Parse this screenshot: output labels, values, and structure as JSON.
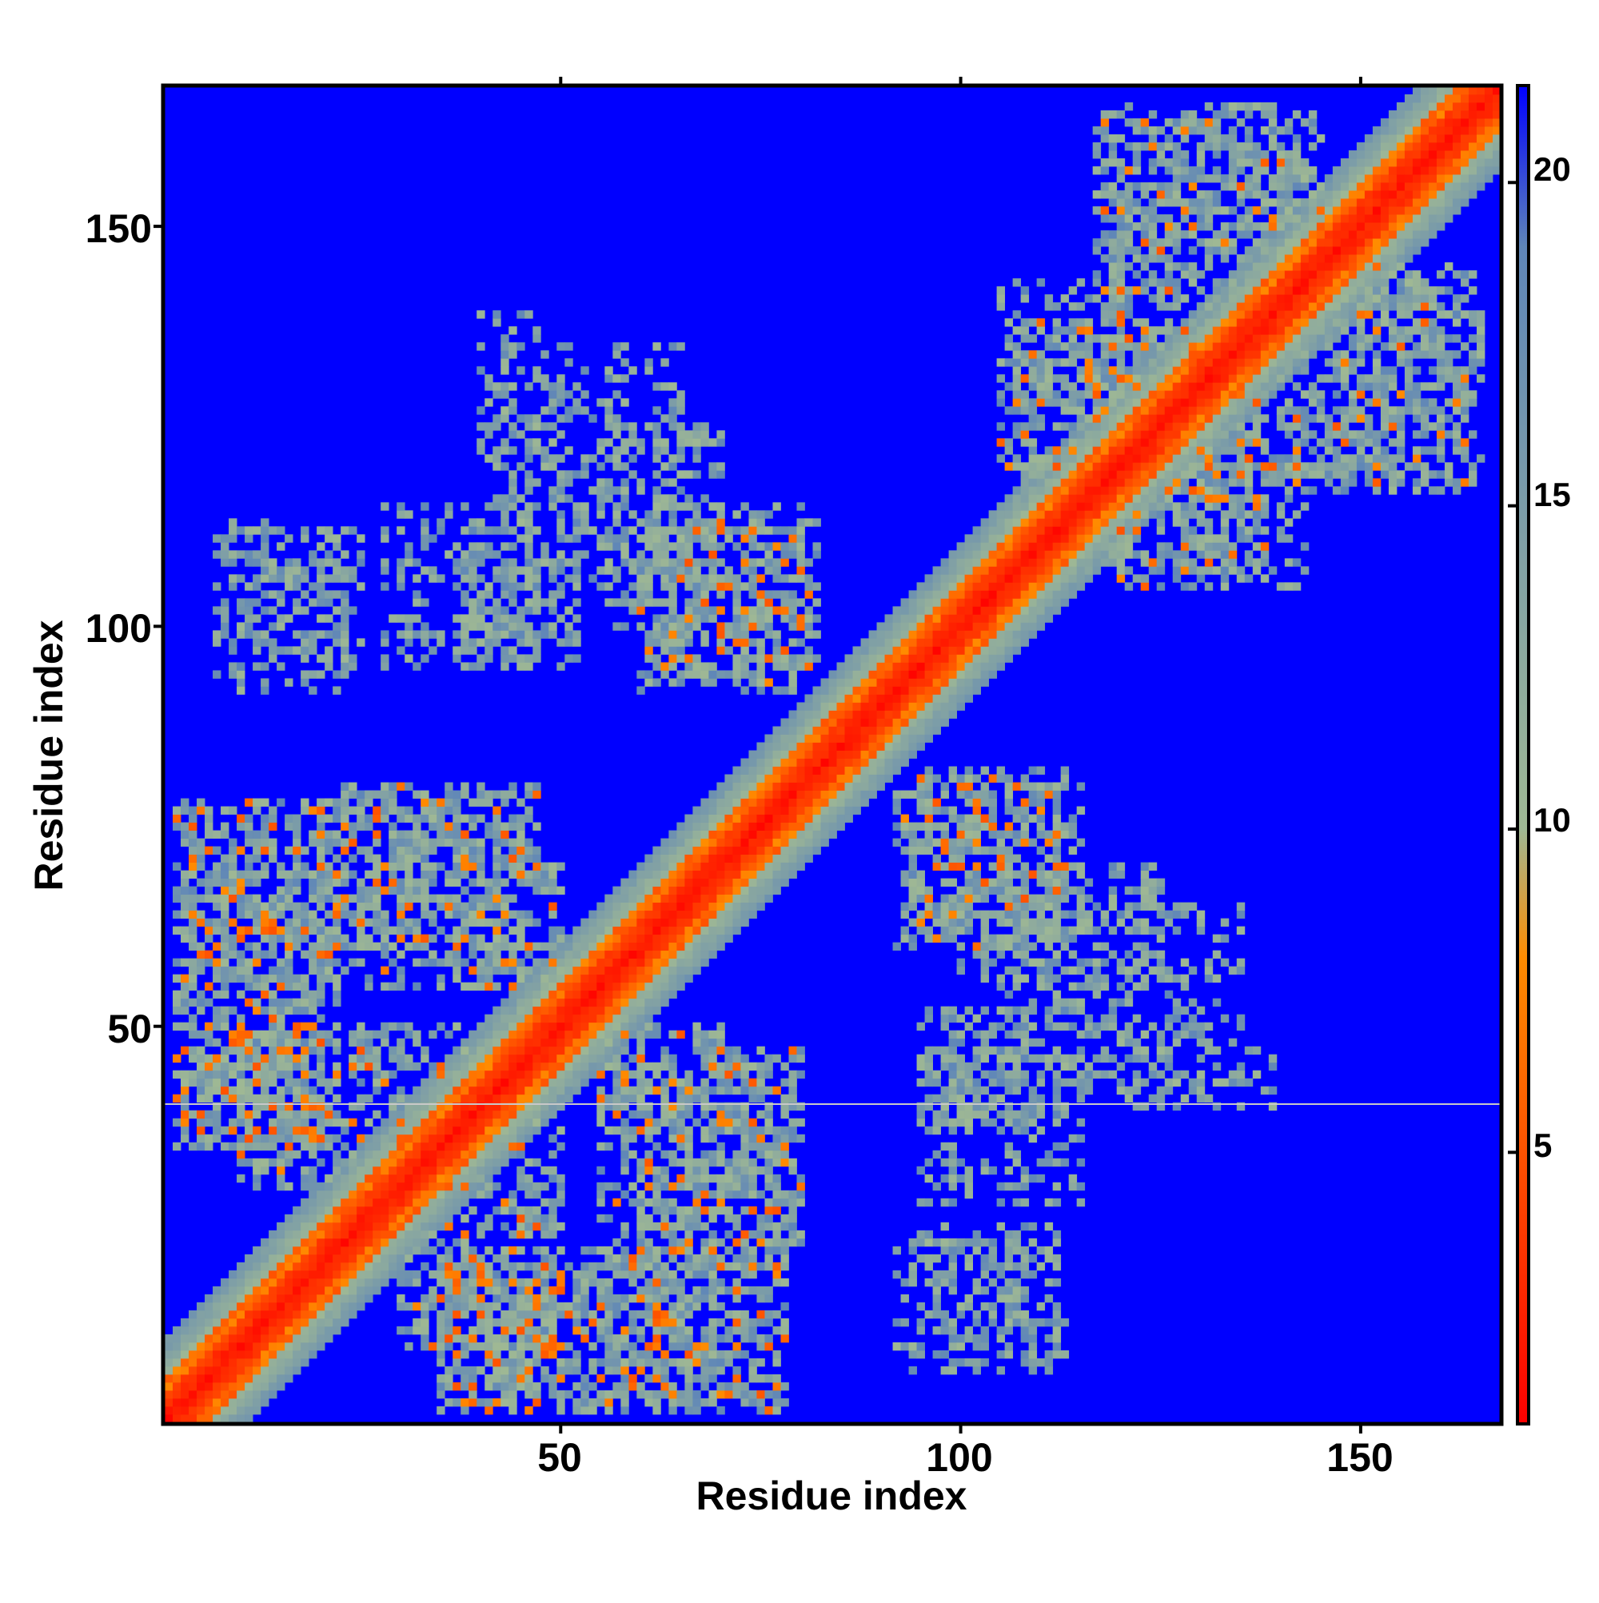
{
  "chart_data": {
    "type": "heatmap",
    "title": "",
    "xlabel": "Residue index",
    "ylabel": "Residue index",
    "n_residues": 167,
    "xlim": [
      1,
      167
    ],
    "ylim": [
      1,
      167
    ],
    "x_ticks": [
      50,
      100,
      150
    ],
    "y_ticks": [
      50,
      100,
      150
    ],
    "colorbar": {
      "range": [
        0.8,
        21.5
      ],
      "ticks": [
        5,
        10,
        15,
        20
      ],
      "colors": [
        "#ff0000",
        "#ff8c00",
        "#9fb894",
        "#5f86b8",
        "#0000ff"
      ],
      "stops": [
        0.8,
        8.0,
        10.0,
        19.0,
        21.5
      ]
    },
    "background_value": 21.5,
    "diagonal_band": {
      "core_width": 3,
      "orange_width": 5,
      "green_width": 10
    },
    "contact_regions": [
      {
        "x": [
          2,
          22
        ],
        "y": [
          35,
          78
        ],
        "density": 0.45,
        "hot": 0.05
      },
      {
        "x": [
          20,
          47
        ],
        "y": [
          60,
          80
        ],
        "density": 0.45,
        "hot": 0.04
      },
      {
        "x": [
          37,
          50
        ],
        "y": [
          55,
          70
        ],
        "density": 0.45,
        "hot": 0.05
      },
      {
        "x": [
          30,
          50
        ],
        "y": [
          10,
          40
        ],
        "density": 0.45,
        "hot": 0.05
      },
      {
        "x": [
          35,
          75
        ],
        "y": [
          3,
          20
        ],
        "density": 0.45,
        "hot": 0.06
      },
      {
        "x": [
          55,
          78
        ],
        "y": [
          20,
          45
        ],
        "density": 0.4,
        "hot": 0.03
      },
      {
        "x": [
          7,
          25
        ],
        "y": [
          92,
          112
        ],
        "density": 0.35,
        "hot": 0.0
      },
      {
        "x": [
          28,
          47
        ],
        "y": [
          95,
          115
        ],
        "density": 0.35,
        "hot": 0.0
      },
      {
        "x": [
          40,
          48
        ],
        "y": [
          120,
          140
        ],
        "density": 0.3,
        "hot": 0.0
      },
      {
        "x": [
          49,
          65
        ],
        "y": [
          105,
          135
        ],
        "density": 0.3,
        "hot": 0.0
      },
      {
        "x": [
          60,
          80
        ],
        "y": [
          92,
          112
        ],
        "density": 0.45,
        "hot": 0.05
      },
      {
        "x": [
          95,
          115
        ],
        "y": [
          62,
          82
        ],
        "density": 0.45,
        "hot": 0.05
      },
      {
        "x": [
          100,
          125
        ],
        "y": [
          55,
          70
        ],
        "density": 0.35,
        "hot": 0.0
      },
      {
        "x": [
          95,
          112
        ],
        "y": [
          38,
          52
        ],
        "density": 0.4,
        "hot": 0.0
      },
      {
        "x": [
          112,
          132
        ],
        "y": [
          42,
          50
        ],
        "density": 0.3,
        "hot": 0.0
      },
      {
        "x": [
          97,
          113
        ],
        "y": [
          8,
          23
        ],
        "density": 0.35,
        "hot": 0.0
      },
      {
        "x": [
          105,
          127
        ],
        "y": [
          120,
          143
        ],
        "density": 0.45,
        "hot": 0.05
      },
      {
        "x": [
          116,
          138
        ],
        "y": [
          107,
          132
        ],
        "density": 0.45,
        "hot": 0.04
      },
      {
        "x": [
          140,
          163
        ],
        "y": [
          117,
          145
        ],
        "density": 0.4,
        "hot": 0.02
      },
      {
        "x": [
          118,
          145
        ],
        "y": [
          145,
          165
        ],
        "density": 0.4,
        "hot": 0.02
      }
    ]
  }
}
